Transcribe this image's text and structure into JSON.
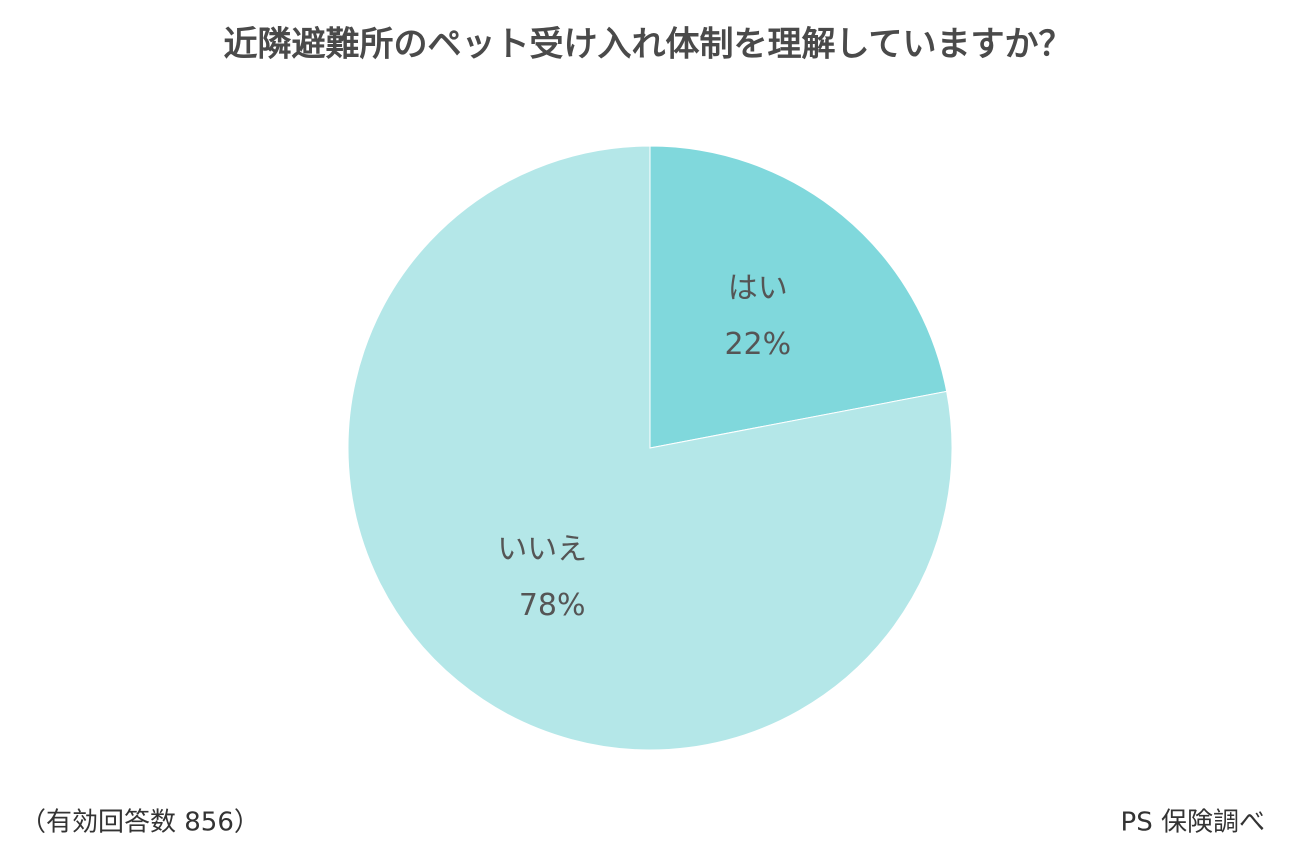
{
  "chart_data": {
    "type": "pie",
    "title": "近隣避難所のペット受け入れ体制を理解していますか？",
    "categories": [
      "はい",
      "いいえ"
    ],
    "values": [
      22,
      78
    ],
    "value_labels": [
      "22%",
      "78%"
    ],
    "colors": [
      "#80d8dc",
      "#b4e7e8"
    ],
    "note": "（有効回答数 856）",
    "source": "PS 保険調べ"
  }
}
